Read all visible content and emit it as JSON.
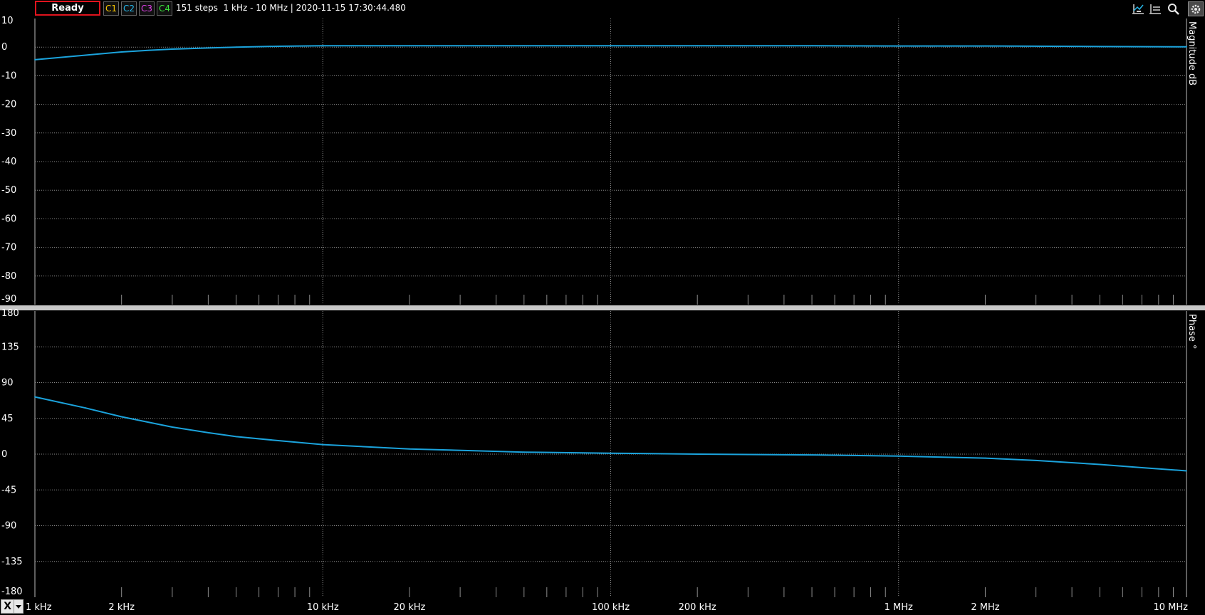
{
  "status": "Ready",
  "channels": [
    {
      "label": "C1",
      "color": "#f5c400"
    },
    {
      "label": "C2",
      "color": "#26b6e8"
    },
    {
      "label": "C3",
      "color": "#e040e8"
    },
    {
      "label": "C4",
      "color": "#3ce43c"
    }
  ],
  "info": "151 steps  1 kHz - 10 MHz | 2020-11-15 17:30:44.480",
  "toolbar_icons": [
    "cursor-a-icon",
    "cursor-b-icon",
    "zoom-icon",
    "settings-icon"
  ],
  "x_axis_selector": "X",
  "colors": {
    "trace": "#1ba3dc",
    "grid": "#8c8c8c",
    "separator": "#c8c8c8",
    "axis": "#ffffff"
  },
  "chart_data": [
    {
      "type": "line",
      "ylabel": "Magnitude  dB",
      "ylim": [
        -90,
        10
      ],
      "yticks": [
        10,
        0,
        -10,
        -20,
        -30,
        -40,
        -50,
        -60,
        -70,
        -80,
        -90
      ],
      "xscale": "log",
      "xlim_hz": [
        1000,
        10000000
      ],
      "grid": true,
      "series": [
        {
          "x_hz": [
            1000,
            1500,
            2000,
            2500,
            3000,
            4000,
            5000,
            7000,
            10000,
            20000,
            50000,
            100000,
            200000,
            500000,
            1000000,
            2000000,
            5000000,
            10000000
          ],
          "values": [
            -4.4,
            -2.8,
            -1.7,
            -1.1,
            -0.7,
            -0.3,
            0,
            0.3,
            0.5,
            0.5,
            0.5,
            0.5,
            0.5,
            0.5,
            0.4,
            0.4,
            0.2,
            0.1
          ]
        }
      ]
    },
    {
      "type": "line",
      "ylabel": "Phase  °",
      "ylim": [
        -180,
        180
      ],
      "yticks": [
        180,
        135,
        90,
        45,
        0,
        -45,
        -90,
        -135,
        -180
      ],
      "xscale": "log",
      "xlim_hz": [
        1000,
        10000000
      ],
      "grid": true,
      "x_tick_labels": [
        {
          "hz": 1000,
          "label": "1 kHz"
        },
        {
          "hz": 2000,
          "label": "2 kHz"
        },
        {
          "hz": 10000,
          "label": "10 kHz"
        },
        {
          "hz": 20000,
          "label": "20 kHz"
        },
        {
          "hz": 100000,
          "label": "100 kHz"
        },
        {
          "hz": 200000,
          "label": "200 kHz"
        },
        {
          "hz": 1000000,
          "label": "1 MHz"
        },
        {
          "hz": 2000000,
          "label": "2 MHz"
        },
        {
          "hz": 10000000,
          "label": "10 MHz"
        }
      ],
      "series": [
        {
          "x_hz": [
            1000,
            1500,
            2000,
            3000,
            4000,
            5000,
            7000,
            10000,
            20000,
            50000,
            100000,
            200000,
            500000,
            1000000,
            2000000,
            3000000,
            5000000,
            7000000,
            10000000
          ],
          "values": [
            72,
            58,
            47,
            34,
            27,
            22,
            17,
            12,
            6.5,
            2.5,
            1.2,
            0,
            -1,
            -2.5,
            -5,
            -8,
            -13,
            -17,
            -21
          ]
        }
      ]
    }
  ]
}
